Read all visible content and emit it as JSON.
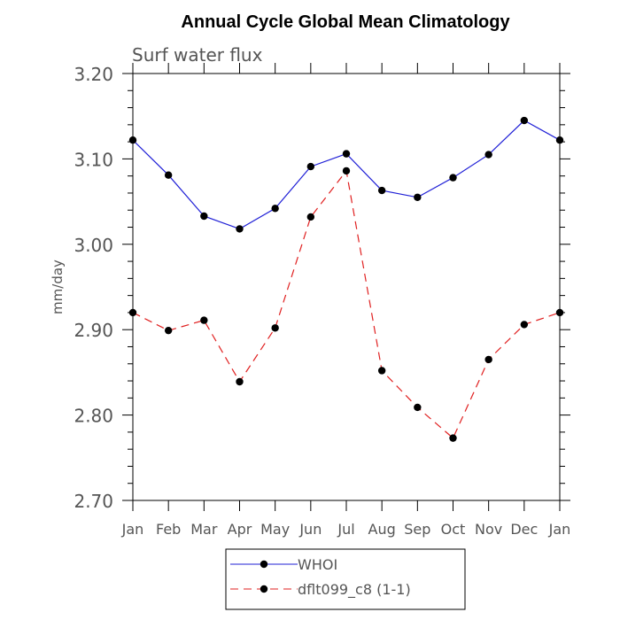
{
  "chart_data": {
    "type": "line",
    "title": "Annual Cycle Global Mean Climatology",
    "subtitle": "Surf water flux",
    "ylabel": "mm/day",
    "xlabel": "",
    "categories": [
      "Jan",
      "Feb",
      "Mar",
      "Apr",
      "May",
      "Jun",
      "Jul",
      "Aug",
      "Sep",
      "Oct",
      "Nov",
      "Dec",
      "Jan"
    ],
    "ylim": [
      2.7,
      3.2
    ],
    "yticks": [
      "2.70",
      "2.80",
      "2.90",
      "3.00",
      "3.10",
      "3.20"
    ],
    "grid": false,
    "legend_position": "bottom-center",
    "series": [
      {
        "name": "WHOI",
        "color": "#1f1fd6",
        "dash": "solid",
        "values": [
          3.122,
          3.081,
          3.033,
          3.018,
          3.042,
          3.091,
          3.106,
          3.063,
          3.055,
          3.078,
          3.105,
          3.145,
          3.122
        ]
      },
      {
        "name": "dflt099_c8 (1-1)",
        "color": "#e02020",
        "dash": "dashed",
        "values": [
          2.92,
          2.899,
          2.911,
          2.839,
          2.902,
          3.032,
          3.086,
          2.852,
          2.809,
          2.773,
          2.865,
          2.906,
          2.92
        ]
      }
    ]
  }
}
